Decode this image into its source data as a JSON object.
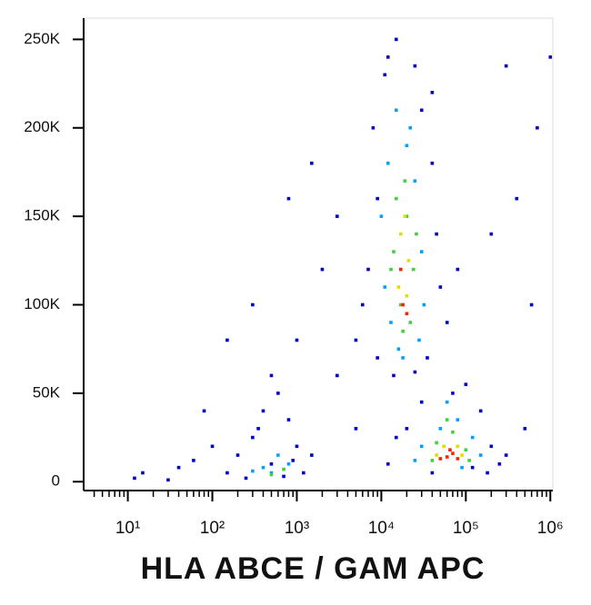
{
  "chart_data": {
    "type": "scatter",
    "xlabel": "HLA ABCE / GAM APC",
    "xscale": "log",
    "xlim": [
      3,
      1070000
    ],
    "xticks": [
      {
        "value": 10,
        "label": "10¹"
      },
      {
        "value": 100,
        "label": "10²"
      },
      {
        "value": 1000,
        "label": "10³"
      },
      {
        "value": 10000,
        "label": "10⁴"
      },
      {
        "value": 100000,
        "label": "10⁵"
      },
      {
        "value": 1000000,
        "label": "10⁶"
      }
    ],
    "ylim": [
      -5000,
      262000
    ],
    "yticks": [
      0,
      {
        "value": 50000,
        "label": "50K"
      },
      {
        "value": 100000,
        "label": "100K"
      },
      {
        "value": 150000,
        "label": "150K"
      },
      {
        "value": 200000,
        "label": "200K"
      },
      {
        "value": 250000,
        "label": "250K"
      }
    ],
    "series": [
      {
        "color": "#0000c8",
        "x": [
          8000,
          9000,
          11000,
          12000,
          25000,
          30000,
          40000,
          7000,
          6000,
          45000,
          50000,
          9000,
          35000,
          14000,
          25000,
          60000,
          80000,
          5000,
          40000,
          15000,
          12000,
          15000,
          20000,
          150000,
          200000,
          250000,
          300000,
          100000,
          30000,
          40000,
          180000,
          70000,
          120000,
          150,
          200,
          300,
          400,
          600,
          800,
          1000,
          1200,
          700,
          250,
          500,
          900,
          350,
          1500,
          15,
          40,
          60,
          100,
          80,
          150,
          300,
          500,
          1000,
          2000,
          3000,
          800,
          1500,
          3000,
          5000,
          500000,
          700000,
          300000,
          600000,
          400000,
          200000,
          1000000,
          12,
          30
        ],
        "values": [
          200000,
          160000,
          230000,
          240000,
          235000,
          210000,
          180000,
          120000,
          100000,
          140000,
          110000,
          70000,
          70000,
          60000,
          62000,
          90000,
          120000,
          80000,
          220000,
          250000,
          10000,
          25000,
          30000,
          40000,
          20000,
          10000,
          15000,
          55000,
          45000,
          5000,
          5000,
          50000,
          8000,
          5000,
          15000,
          25000,
          40000,
          50000,
          35000,
          20000,
          5000,
          3000,
          2000,
          10000,
          12000,
          30000,
          15000,
          5000,
          8000,
          12000,
          20000,
          40000,
          80000,
          100000,
          60000,
          80000,
          120000,
          150000,
          160000,
          180000,
          60000,
          30000,
          30000,
          200000,
          235000,
          100000,
          160000,
          140000,
          240000,
          2000,
          1000
        ]
      },
      {
        "color": "#00a0ff",
        "x": [
          12000,
          20000,
          15000,
          25000,
          10000,
          30000,
          13000,
          28000,
          18000,
          22000,
          11000,
          32000,
          16000,
          30000,
          50000,
          80000,
          120000,
          25000,
          150000,
          60000,
          90000,
          400,
          600,
          500,
          800,
          300
        ],
        "values": [
          180000,
          190000,
          210000,
          170000,
          150000,
          130000,
          90000,
          80000,
          70000,
          200000,
          110000,
          100000,
          75000,
          20000,
          30000,
          35000,
          25000,
          12000,
          15000,
          45000,
          8000,
          8000,
          15000,
          5000,
          10000,
          6000
        ]
      },
      {
        "color": "#40d040",
        "x": [
          15000,
          20000,
          14000,
          24000,
          17000,
          22000,
          19000,
          13000,
          26000,
          18000,
          45000,
          70000,
          100000,
          40000,
          60000,
          110000,
          500,
          700
        ],
        "values": [
          160000,
          150000,
          130000,
          120000,
          100000,
          90000,
          170000,
          120000,
          140000,
          85000,
          22000,
          28000,
          18000,
          12000,
          35000,
          12000,
          4000,
          7000
        ]
      },
      {
        "color": "#e0e000",
        "x": [
          17000,
          21000,
          16000,
          19000,
          20000,
          55000,
          80000,
          45000,
          90000
        ],
        "values": [
          140000,
          125000,
          110000,
          150000,
          105000,
          20000,
          20000,
          15000,
          15000
        ]
      },
      {
        "color": "#ff2000",
        "x": [
          18000,
          17000,
          20000,
          60000,
          70000,
          50000,
          80000,
          65000
        ],
        "values": [
          100000,
          120000,
          95000,
          14000,
          16000,
          13000,
          13000,
          18000
        ]
      }
    ]
  }
}
